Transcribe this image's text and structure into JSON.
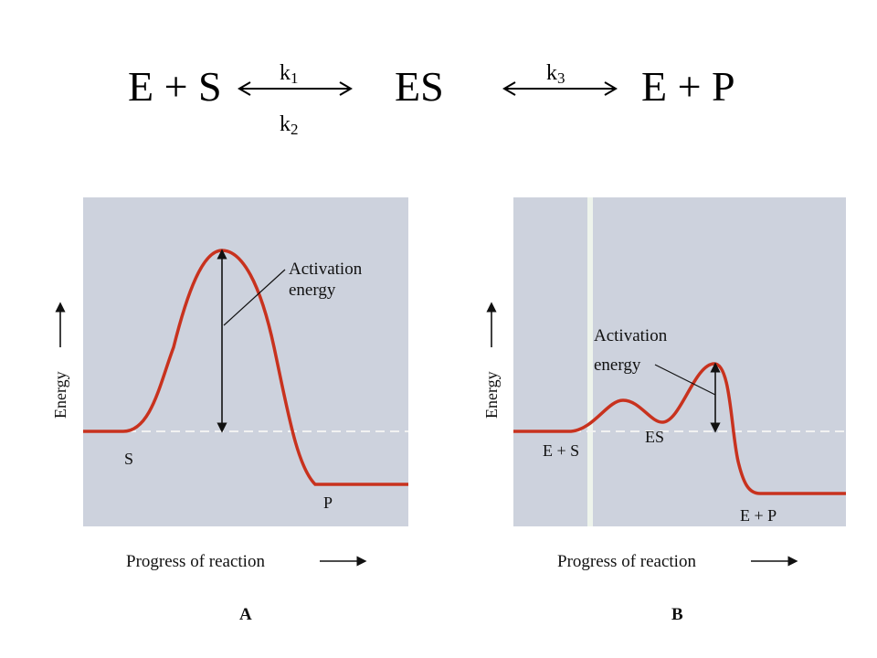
{
  "equation": {
    "left": "E + S",
    "middle": "ES",
    "right": "E + P",
    "k1": "k",
    "k1_sub": "1",
    "k2": "k",
    "k2_sub": "2",
    "k3": "k",
    "k3_sub": "3"
  },
  "panel_a": {
    "y_axis": "Energy",
    "x_axis": "Progress of reaction",
    "annotation": [
      "Activation",
      "energy"
    ],
    "start_label": "S",
    "end_label": "P",
    "caption": "A"
  },
  "panel_b": {
    "y_axis": "Energy",
    "x_axis": "Progress of reaction",
    "annotation": [
      "Activation",
      "energy"
    ],
    "start_label": "E + S",
    "mid_label": "ES",
    "end_label": "E + P",
    "caption": "B"
  },
  "colors": {
    "curve": "#c8321e",
    "panel_bg": "#cdd2dd",
    "dashed_line": "#f0f0f0",
    "text": "#111111"
  }
}
